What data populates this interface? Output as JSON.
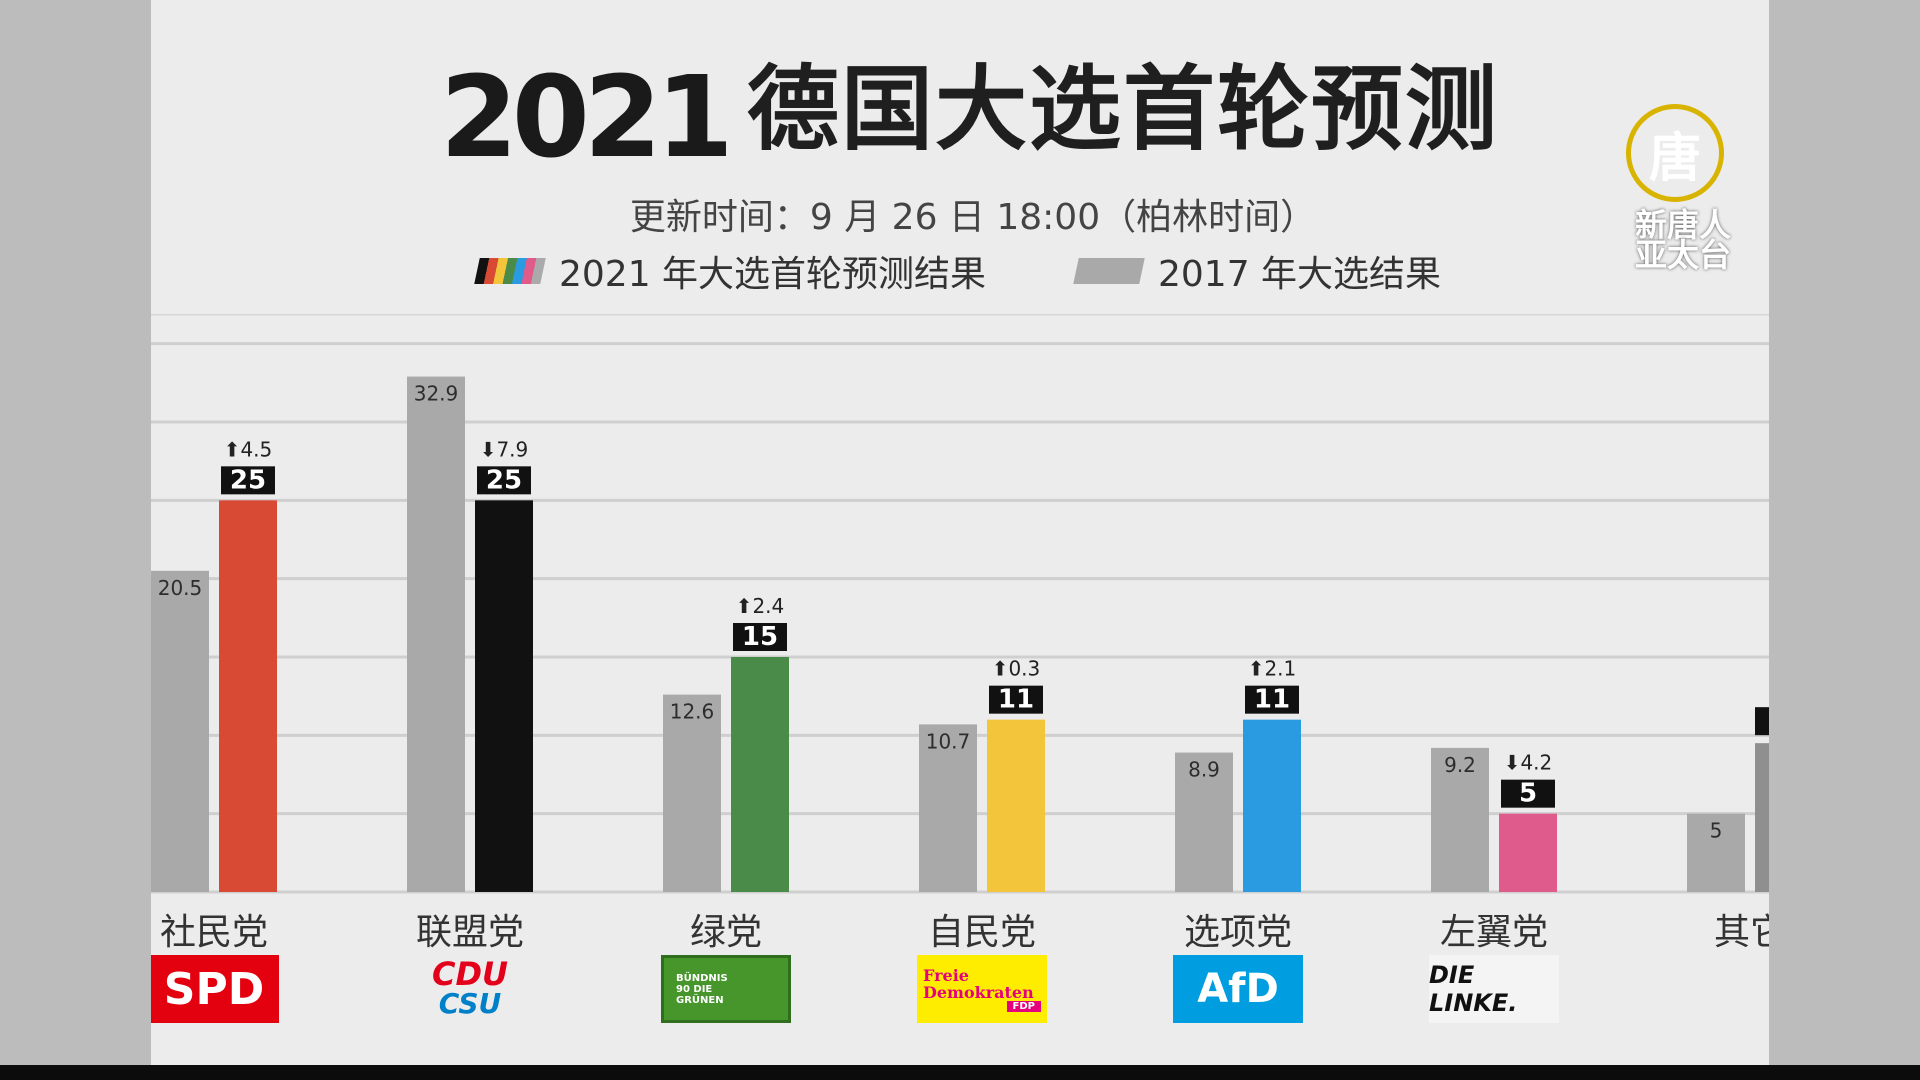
{
  "header": {
    "title_year": "2021",
    "title_text": "德国大选首轮预测",
    "update_text": "更新时间：9 月 26 日 18:00（柏林时间）"
  },
  "legend": {
    "current_label": "2021 年大选首轮预测结果",
    "previous_label": "2017 年大选结果",
    "previous_color": "#a9a9a9",
    "current_stripe_colors": [
      "#111111",
      "#d94a35",
      "#f2c53a",
      "#4b8b49",
      "#2a9be0",
      "#e05a8a",
      "#aaaaaa"
    ]
  },
  "watermark": {
    "logo_char": "唐",
    "logo_text_line1": "新唐人",
    "logo_text_line2": "亚太台"
  },
  "chart_data": {
    "type": "bar",
    "title": "2021 德国大选首轮预测",
    "categories": [
      "社民党",
      "联盟党",
      "绿党",
      "自民党",
      "选项党",
      "左翼党",
      "其它"
    ],
    "series": [
      {
        "name": "2017 年大选结果",
        "values": [
          20.5,
          32.9,
          12.6,
          10.7,
          8.9,
          9.2,
          5
        ],
        "color": "#a9a9a9"
      },
      {
        "name": "2021 年大选首轮预测结果",
        "values": [
          25,
          25,
          15,
          11,
          11,
          5,
          null
        ]
      }
    ],
    "bar_colors_2021": [
      "#d94a35",
      "#111111",
      "#4b8b49",
      "#f2c53a",
      "#2a9be0",
      "#df5b8b",
      "#111111"
    ],
    "changes": [
      {
        "direction": "up",
        "text": "4.5"
      },
      {
        "direction": "down",
        "text": "7.9"
      },
      {
        "direction": "up",
        "text": "2.4"
      },
      {
        "direction": "up",
        "text": "0.3"
      },
      {
        "direction": "up",
        "text": "2.1"
      },
      {
        "direction": "down",
        "text": "4.2"
      },
      null
    ],
    "ylim": [
      0,
      36
    ],
    "grid": true,
    "legend_position": "top"
  },
  "parties": [
    {
      "name": "社民党",
      "logo_text": "SPD",
      "logo_bg": "#e3000f",
      "logo_fg": "#ffffff"
    },
    {
      "name": "联盟党",
      "logo_text": "CDU",
      "logo_text2": "CSU",
      "logo_bg": "#ececec",
      "logo_fg": "#e2001a",
      "logo_fg2": "#0080c8"
    },
    {
      "name": "绿党",
      "logo_text": "BÜNDNIS 90 DIE GRÜNEN",
      "logo_bg": "#46962b",
      "logo_fg": "#ffffff"
    },
    {
      "name": "自民党",
      "logo_text": "Freie Demokraten",
      "logo_text2": "FDP",
      "logo_bg": "#ffed00",
      "logo_fg": "#e5007d"
    },
    {
      "name": "选项党",
      "logo_text": "AfD",
      "logo_bg": "#009ee0",
      "logo_fg": "#ffffff"
    },
    {
      "name": "左翼党",
      "logo_text": "DIE LINKE.",
      "logo_bg": "#f4f4f4",
      "logo_fg": "#111111"
    },
    {
      "name": "其它",
      "logo_text": "",
      "logo_bg": "",
      "logo_fg": ""
    }
  ]
}
